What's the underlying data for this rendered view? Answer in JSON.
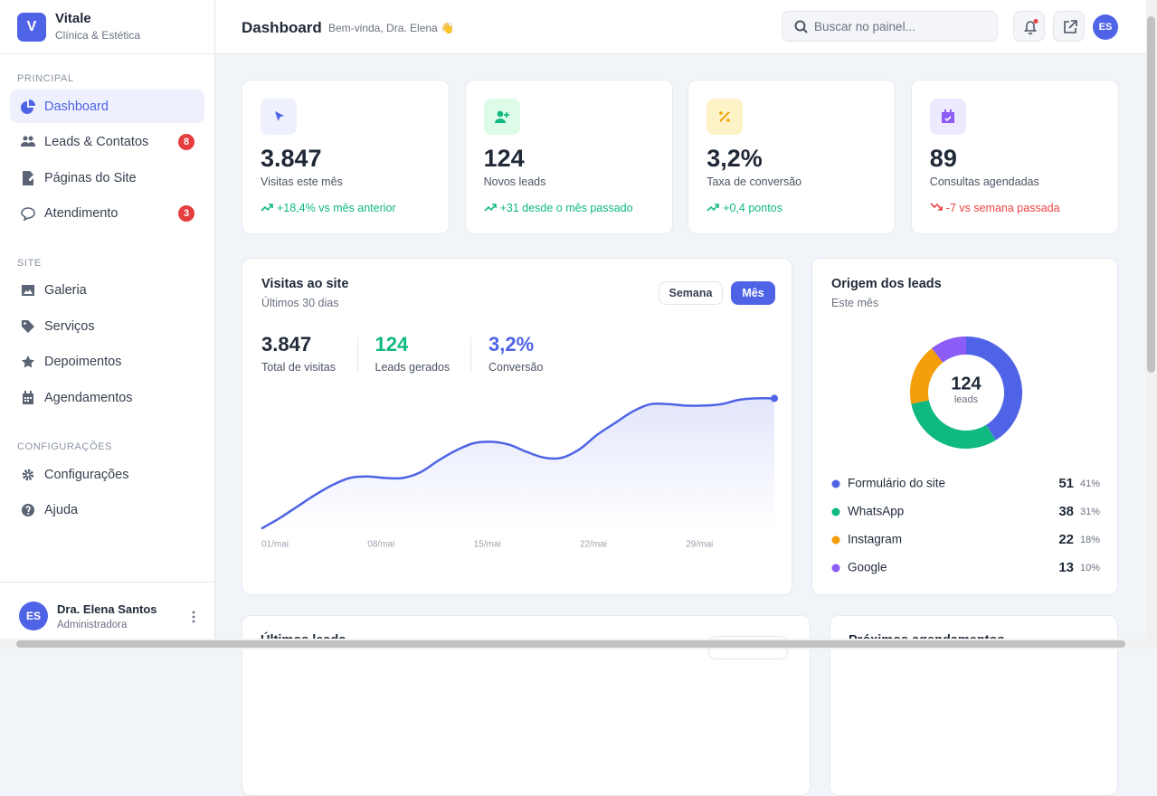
{
  "sidebar": {
    "logo": "V",
    "brand": "Vitale",
    "tagline": "Clínica & Estética",
    "sections": [
      {
        "title": "PRINCIPAL",
        "items": [
          {
            "label": "Dashboard",
            "active": true
          },
          {
            "label": "Leads & Contatos",
            "badge": 8
          },
          {
            "label": "Páginas do Site"
          },
          {
            "label": "Atendimento",
            "badge": 3
          }
        ]
      },
      {
        "title": "SITE",
        "items": [
          {
            "label": "Galeria"
          },
          {
            "label": "Serviços"
          },
          {
            "label": "Depoimentos"
          },
          {
            "label": "Agendamentos"
          }
        ]
      },
      {
        "title": "CONFIGURAÇÕES",
        "items": [
          {
            "label": "Configurações"
          },
          {
            "label": "Ajuda"
          }
        ]
      }
    ],
    "user": {
      "initials": "ES",
      "name": "Dra. Elena Santos",
      "role": "Administradora"
    }
  },
  "header": {
    "title": "Dashboard",
    "subtitle": "Bem-vinda, Dra. Elena 👋",
    "search_placeholder": "Buscar no painel...",
    "avatar": "ES"
  },
  "stats": [
    {
      "value": "3.847",
      "label": "Visitas este mês",
      "change": "+18,4% vs mês anterior",
      "trend": "up",
      "color": "#4f63e6",
      "bg": "#eef0fd"
    },
    {
      "value": "124",
      "label": "Novos leads",
      "change": "+31 desde o mês passado",
      "trend": "up",
      "color": "#10b981",
      "bg": "#dcfce7"
    },
    {
      "value": "3,2%",
      "label": "Taxa de conversão",
      "change": "+0,4 pontos",
      "trend": "up",
      "color": "#f59e0b",
      "bg": "#fef3c7"
    },
    {
      "value": "89",
      "label": "Consultas agendadas",
      "change": "-7 vs semana passada",
      "trend": "down",
      "color": "#8b5cf6",
      "bg": "#ede9fe"
    }
  ],
  "visits": {
    "title": "Visitas ao site",
    "subtitle": "Últimos 30 dias",
    "toggle": [
      "Semana",
      "Mês"
    ],
    "active_toggle": 1,
    "summary": [
      {
        "value": "3.847",
        "label": "Total de visitas",
        "color": "#1f2937"
      },
      {
        "value": "124",
        "label": "Leads gerados",
        "color": "#10b981"
      },
      {
        "value": "3,2%",
        "label": "Conversão",
        "color": "#4f63e6"
      }
    ],
    "chart": {
      "type": "line",
      "color": "#4f63e6",
      "ylim": [
        0,
        100
      ],
      "categories": [
        "01/mai",
        null,
        null,
        null,
        null,
        null,
        "08/mai",
        null,
        null,
        null,
        null,
        null,
        "15/mai",
        null,
        null,
        null,
        null,
        null,
        "22/mai",
        null,
        null,
        null,
        null,
        null,
        "29/mai",
        null,
        null,
        null,
        null,
        null
      ],
      "values": [
        1,
        8,
        16,
        24,
        31,
        36,
        37,
        36,
        36,
        40,
        48,
        55,
        60,
        61,
        59,
        54,
        50,
        50,
        56,
        66,
        74,
        82,
        87,
        87,
        86,
        86,
        87,
        90,
        91,
        91
      ]
    }
  },
  "origin": {
    "title": "Origem dos leads",
    "subtitle": "Este mês",
    "total": "124",
    "total_label": "leads",
    "chart": {
      "type": "donut",
      "categories": [
        "Formulário do site",
        "WhatsApp",
        "Instagram",
        "Google"
      ],
      "values": [
        51,
        38,
        22,
        13
      ],
      "percent_labels": [
        "41%",
        "31%",
        "18%",
        "10%"
      ],
      "colors": [
        "#4f63e6",
        "#10b981",
        "#f59e0b",
        "#8b5cf6"
      ]
    }
  },
  "bottom": [
    {
      "title": "Últimos leads"
    },
    {
      "title": "Próximos agendamentos"
    }
  ]
}
